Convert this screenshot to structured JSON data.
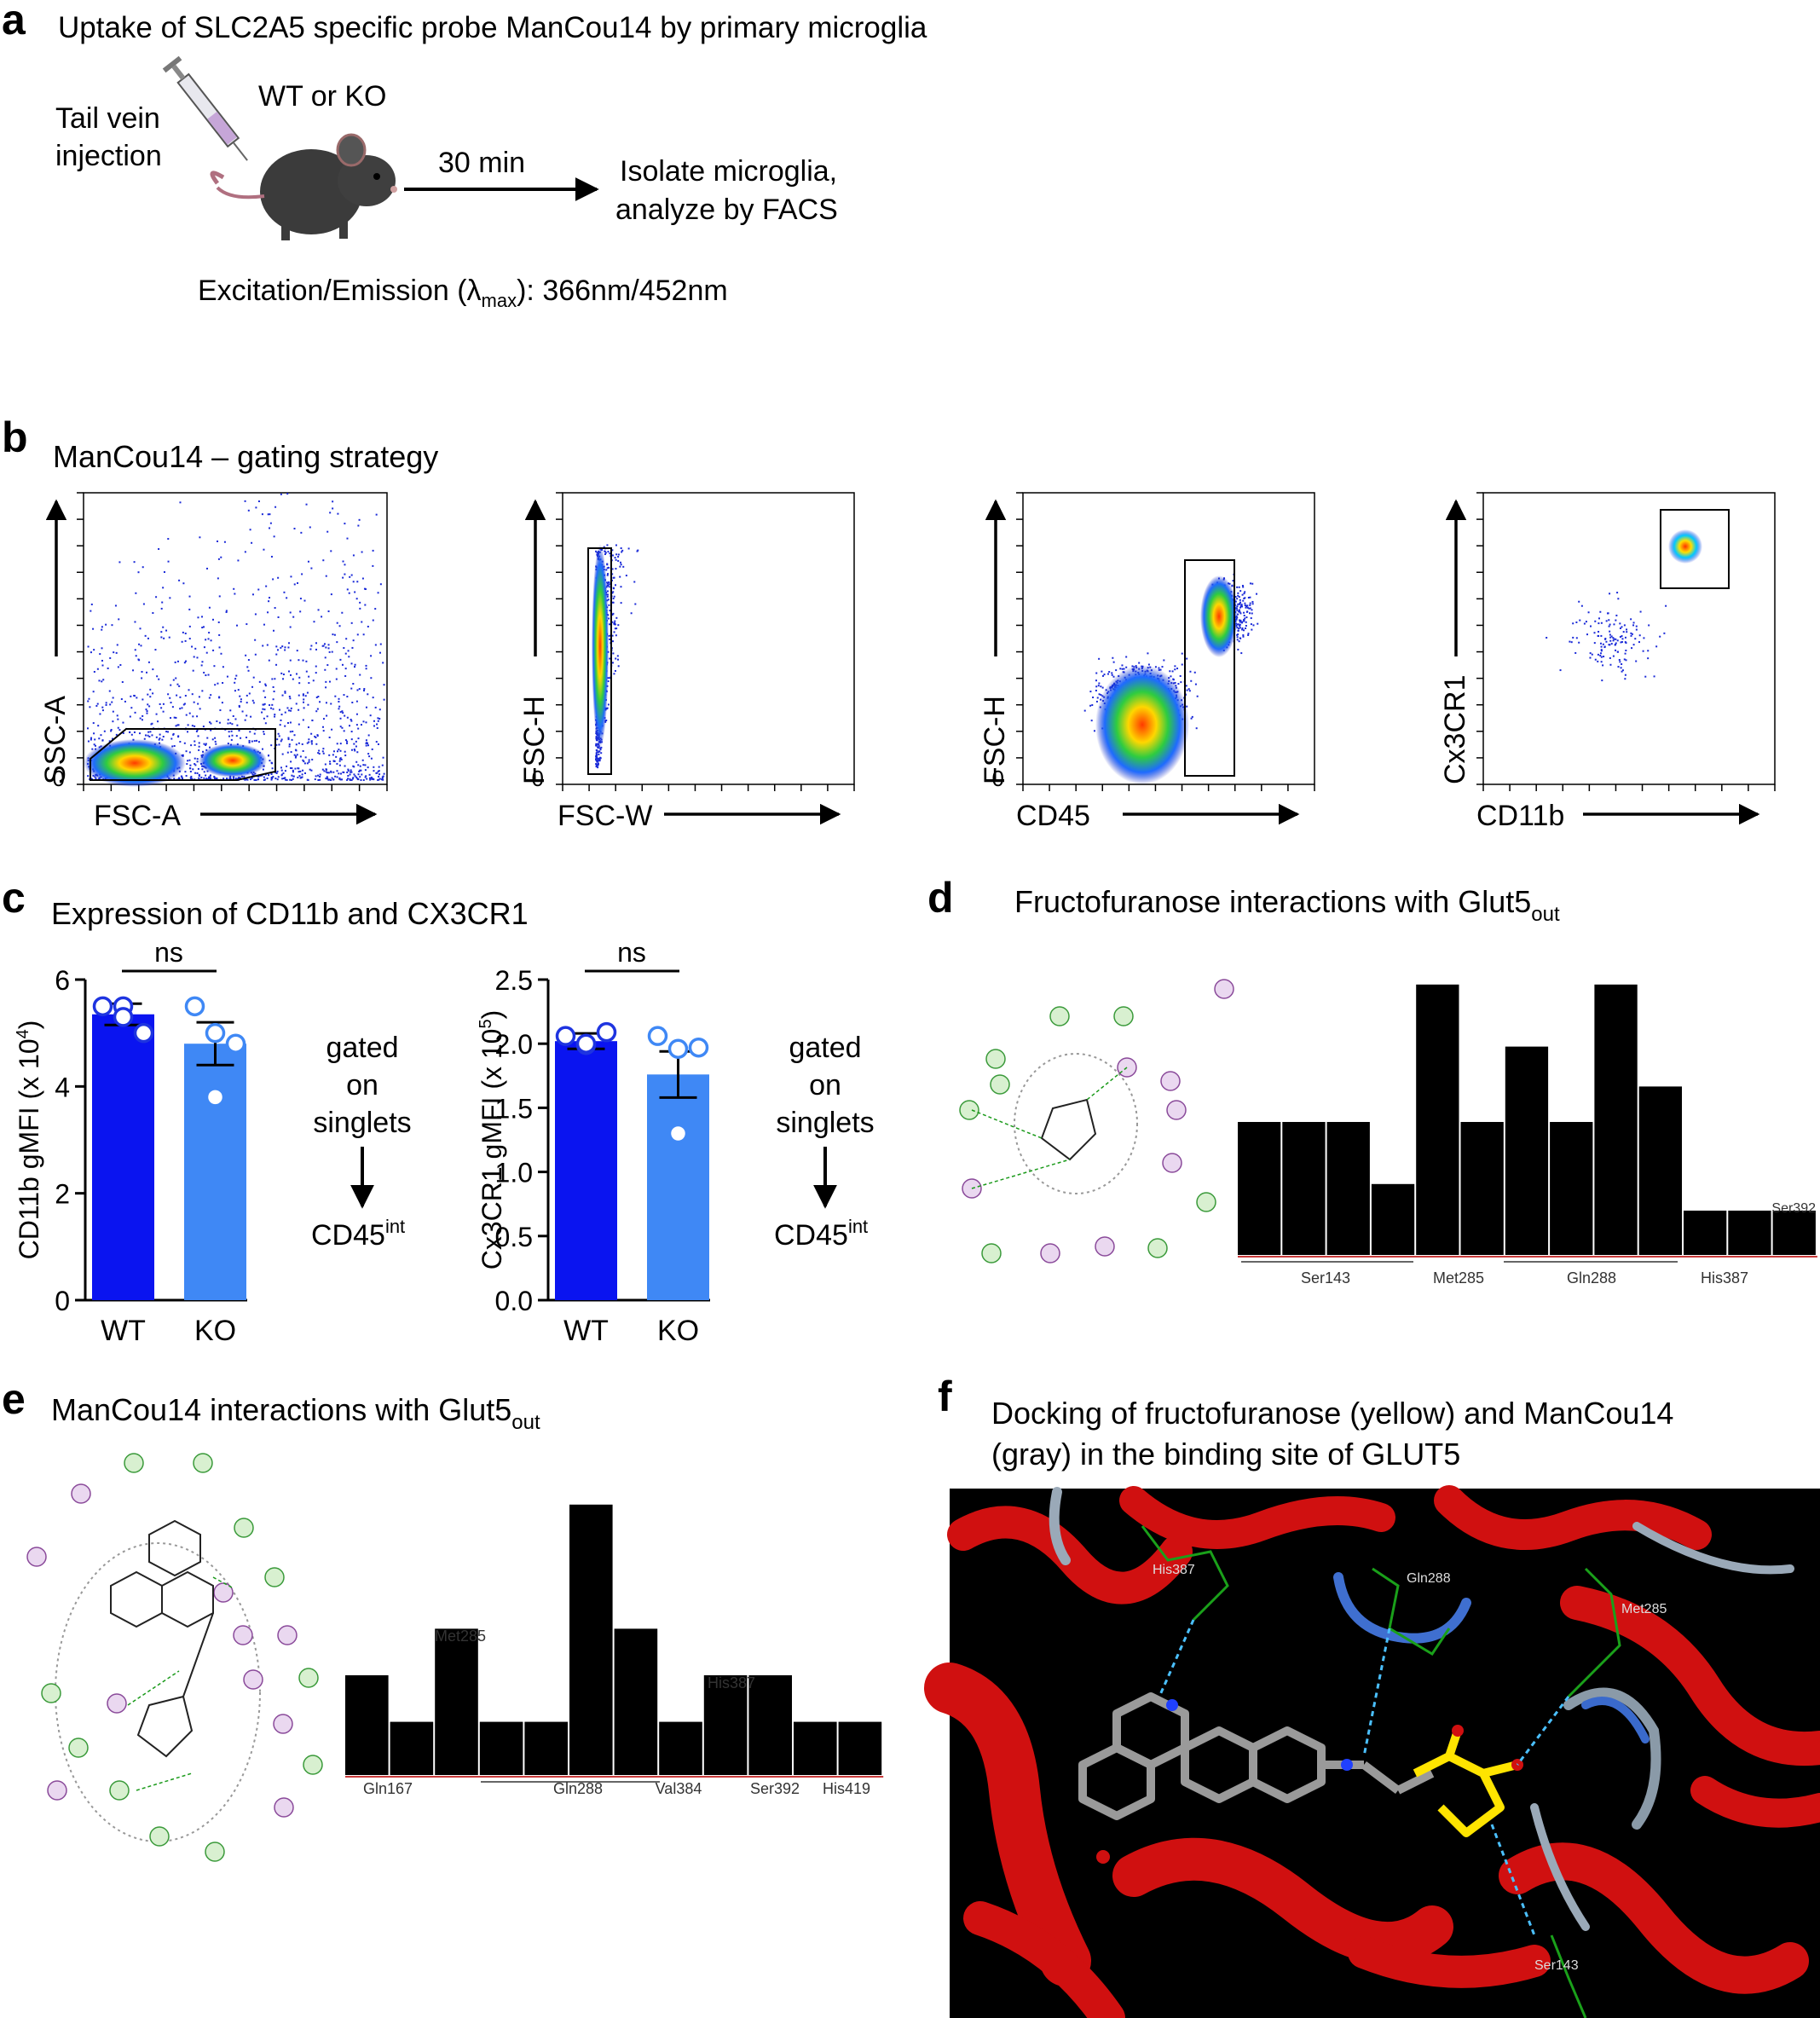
{
  "panels": {
    "a": {
      "letter": "a",
      "title": "Uptake of SLC2A5 specific probe ManCou14 by primary microglia",
      "injection1": "Tail vein",
      "injection2": "injection",
      "genotype": "WT or KO",
      "time": "30 min",
      "outcome1": "Isolate microglia,",
      "outcome2": "analyze by FACS",
      "excitation_prefix": "Excitation/Emission (λ",
      "excitation_sub": "max",
      "excitation_suffix": "): 366nm/452nm"
    },
    "b": {
      "letter": "b",
      "title": "ManCou14 – gating strategy",
      "plots": [
        {
          "xlabel": "FSC-A",
          "ylabel": "SSC-A",
          "yticks": [
            "0"
          ]
        },
        {
          "xlabel": "FSC-W",
          "ylabel": "FSC-H",
          "yticks": [
            "0"
          ]
        },
        {
          "xlabel": "CD45",
          "ylabel": "FSC-H",
          "yticks": [
            "0"
          ]
        },
        {
          "xlabel": "CD11b",
          "ylabel": "Cx3CR1",
          "yticks": []
        }
      ]
    },
    "c": {
      "letter": "c",
      "title": "Expression of CD11b and CX3CR1",
      "gated1": "gated",
      "gated2": "on",
      "gated3": "singlets",
      "cd45_main": "CD45",
      "cd45_sup": "int"
    },
    "d": {
      "letter": "d",
      "title_main": "Fructofuranose interactions with Glut5",
      "title_sub": "out"
    },
    "e": {
      "letter": "e",
      "title_main": "ManCou14 interactions with Glut5",
      "title_sub": "out"
    },
    "f": {
      "letter": "f",
      "title1": "Docking of fructofuranose (yellow) and ManCou14",
      "title2": "(gray) in the binding site of GLUT5",
      "residue_labels": [
        "His387",
        "Gln288",
        "Met285",
        "Ser143"
      ]
    }
  },
  "chart_data": [
    {
      "type": "bar",
      "panel": "c-left",
      "categories": [
        "WT",
        "KO"
      ],
      "values": [
        5.35,
        4.8
      ],
      "sem": [
        0.2,
        0.4
      ],
      "points": [
        [
          5.5,
          5.5,
          5.0,
          5.3
        ],
        [
          5.5,
          5.0,
          4.8,
          3.8
        ]
      ],
      "ylabel_main": "CD11b gMFI (x 10",
      "ylabel_sup": "4",
      "ylabel_end": ")",
      "ylim": [
        0,
        6
      ],
      "yticks": [
        "0",
        "2",
        "4",
        "6"
      ],
      "annotation": "ns",
      "colors": [
        "#0a14f0",
        "#3f88f5"
      ]
    },
    {
      "type": "bar",
      "panel": "c-right",
      "categories": [
        "WT",
        "KO"
      ],
      "values": [
        2.02,
        1.76
      ],
      "sem": [
        0.06,
        0.18
      ],
      "points": [
        [
          2.06,
          1.99,
          2.09,
          2.0
        ],
        [
          2.06,
          1.96,
          1.97,
          1.3
        ]
      ],
      "ylabel_main": "Cx3CR1 gMFI (x 10",
      "ylabel_sup": "5",
      "ylabel_end": ")",
      "ylim": [
        0,
        2.5
      ],
      "yticks": [
        "0.0",
        "0.5",
        "1.0",
        "1.5",
        "2.0",
        "2.5"
      ],
      "annotation": "ns",
      "colors": [
        "#0a14f0",
        "#3f88f5"
      ]
    },
    {
      "type": "bar",
      "panel": "d",
      "values": [
        3,
        3,
        3,
        1.6,
        6.1,
        3,
        4.7,
        3,
        6.1,
        3.8,
        1,
        1,
        1
      ],
      "xlabels": [
        "Ser143",
        "Met285",
        "Gln288",
        "His387"
      ],
      "toplabel": "Ser392"
    },
    {
      "type": "bar",
      "panel": "e",
      "values": [
        2.25,
        1.2,
        3.3,
        1.2,
        1.2,
        6.1,
        3.3,
        1.2,
        2.25,
        2.25,
        1.2,
        1.2
      ],
      "xlabels": [
        "Gln167",
        "Gln288",
        "Val384",
        "Ser392",
        "His419"
      ],
      "toplabels": [
        "Met285",
        "His387"
      ]
    }
  ]
}
